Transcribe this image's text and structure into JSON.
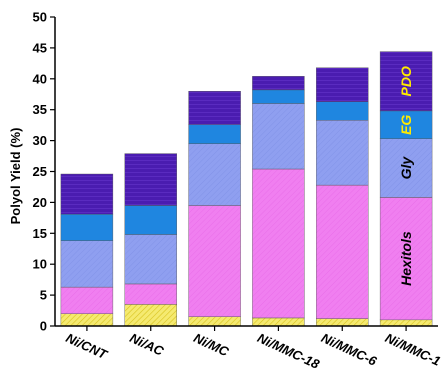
{
  "chart_data": {
    "type": "bar",
    "stacked": true,
    "ylabel": "Polyol Yield (%)",
    "ylim": [
      0,
      50
    ],
    "yticks": [
      0,
      5,
      10,
      15,
      20,
      25,
      30,
      35,
      40,
      45,
      50
    ],
    "categories": [
      "Ni/CNT",
      "Ni/AC",
      "Ni/MC",
      "Ni/MMC-18",
      "Ni/MMC-6",
      "Ni/MMC-1"
    ],
    "series": [
      {
        "key": "yellow",
        "color": "#f5ea70",
        "pattern": "hatch-yellow",
        "values": [
          2.0,
          3.5,
          1.5,
          1.3,
          1.2,
          1.0
        ]
      },
      {
        "name": "Hexitols",
        "color": "#f07ff0",
        "pattern": "hatch-pink",
        "values": [
          4.3,
          3.3,
          18.0,
          24.1,
          21.6,
          19.8
        ]
      },
      {
        "name": "Gly",
        "color": "#8f9ff0",
        "pattern": "hatch-blue",
        "values": [
          7.5,
          8.0,
          10.0,
          10.6,
          10.5,
          9.5
        ]
      },
      {
        "name": "EG",
        "color": "#1f86e0",
        "pattern": "solid-eg",
        "values": [
          4.3,
          4.7,
          3.1,
          2.2,
          3.0,
          4.5
        ]
      },
      {
        "name": "PDO",
        "color": "#4a1cb0",
        "pattern": "hatch-purple",
        "values": [
          6.5,
          8.4,
          5.4,
          2.2,
          5.5,
          9.6
        ]
      }
    ],
    "segment_labels": [
      {
        "series": "Hexitols",
        "text": "Hexitols",
        "color": "#000000"
      },
      {
        "series": "Gly",
        "text": "Gly",
        "color": "#000000"
      },
      {
        "series": "EG",
        "text": "EG",
        "color": "#ffea00"
      },
      {
        "series": "PDO",
        "text": "PDO",
        "color": "#ffea00"
      }
    ],
    "segment_label_category": "Ni/MMC-1",
    "grid": false
  }
}
